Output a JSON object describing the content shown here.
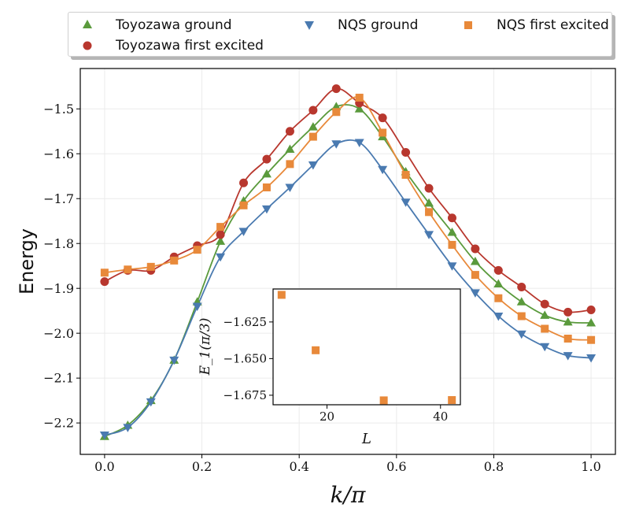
{
  "chart_data": [
    {
      "type": "line",
      "xlabel": "k/π",
      "ylabel": "Energy",
      "xlim": [
        -0.05,
        1.05
      ],
      "ylim": [
        -2.27,
        -1.41
      ],
      "xticks": [
        "0.0",
        "0.2",
        "0.4",
        "0.6",
        "0.8",
        "1.0"
      ],
      "yticks": [
        "−1.5",
        "−1.6",
        "−1.7",
        "−1.8",
        "−1.9",
        "−2.0",
        "−2.1",
        "−2.2"
      ],
      "grid": true,
      "legend": "top, outside, 3 columns",
      "series": [
        {
          "name": "Toyozawa ground",
          "marker": "triangle-up",
          "color": "#5a9a3c",
          "x": [
            0.0,
            0.0476,
            0.0952,
            0.1429,
            0.1905,
            0.2381,
            0.2857,
            0.3333,
            0.381,
            0.4286,
            0.4762,
            0.5238,
            0.5714,
            0.619,
            0.6667,
            0.7143,
            0.7619,
            0.8095,
            0.8571,
            0.9048,
            0.9524,
            1.0
          ],
          "y": [
            -2.23,
            -2.205,
            -2.15,
            -2.06,
            -1.93,
            -1.795,
            -1.705,
            -1.645,
            -1.59,
            -1.54,
            -1.495,
            -1.5,
            -1.562,
            -1.64,
            -1.71,
            -1.775,
            -1.84,
            -1.89,
            -1.93,
            -1.96,
            -1.975,
            -1.977
          ]
        },
        {
          "name": "Toyozawa first excited",
          "marker": "circle",
          "color": "#b8372e",
          "x": [
            0.0,
            0.0476,
            0.0952,
            0.1429,
            0.1905,
            0.2381,
            0.2857,
            0.3333,
            0.381,
            0.4286,
            0.4762,
            0.5238,
            0.5714,
            0.619,
            0.6667,
            0.7143,
            0.7619,
            0.8095,
            0.8571,
            0.9048,
            0.9524,
            1.0
          ],
          "y": [
            -1.885,
            -1.86,
            -1.86,
            -1.83,
            -1.805,
            -1.78,
            -1.665,
            -1.612,
            -1.55,
            -1.503,
            -1.455,
            -1.487,
            -1.52,
            -1.597,
            -1.677,
            -1.743,
            -1.812,
            -1.86,
            -1.897,
            -1.935,
            -1.953,
            -1.948
          ]
        },
        {
          "name": "NQS ground",
          "marker": "triangle-down",
          "color": "#4a7ab0",
          "x": [
            0.0,
            0.0476,
            0.0952,
            0.1429,
            0.1905,
            0.2381,
            0.2857,
            0.3333,
            0.381,
            0.4286,
            0.4762,
            0.5238,
            0.5714,
            0.619,
            0.6667,
            0.7143,
            0.7619,
            0.8095,
            0.8571,
            0.9048,
            0.9524,
            1.0
          ],
          "y": [
            -2.227,
            -2.21,
            -2.153,
            -2.06,
            -1.94,
            -1.83,
            -1.773,
            -1.723,
            -1.675,
            -1.625,
            -1.578,
            -1.575,
            -1.635,
            -1.708,
            -1.78,
            -1.85,
            -1.91,
            -1.962,
            -2.002,
            -2.03,
            -2.05,
            -2.055
          ]
        },
        {
          "name": "NQS first excited",
          "marker": "square",
          "color": "#e8893a",
          "x": [
            0.0,
            0.0476,
            0.0952,
            0.1429,
            0.1905,
            0.2381,
            0.2857,
            0.3333,
            0.381,
            0.4286,
            0.4762,
            0.5238,
            0.5714,
            0.619,
            0.6667,
            0.7143,
            0.7619,
            0.8095,
            0.8571,
            0.9048,
            0.9524,
            1.0
          ],
          "y": [
            -1.865,
            -1.858,
            -1.852,
            -1.838,
            -1.814,
            -1.763,
            -1.715,
            -1.675,
            -1.623,
            -1.562,
            -1.507,
            -1.475,
            -1.553,
            -1.647,
            -1.73,
            -1.803,
            -1.87,
            -1.922,
            -1.962,
            -1.99,
            -2.012,
            -2.015
          ]
        }
      ]
    },
    {
      "type": "scatter",
      "xlabel": "L",
      "ylabel": "E_1(π/3)",
      "xlim": [
        10.5,
        43.5
      ],
      "ylim": [
        -1.6815,
        -1.6025
      ],
      "xticks": [
        "20",
        "40"
      ],
      "yticks": [
        "−1.625",
        "−1.650",
        "−1.675"
      ],
      "series": [
        {
          "name": "NQS first excited",
          "marker": "square",
          "color": "#e8893a",
          "x": [
            12,
            18,
            30,
            42
          ],
          "y": [
            -1.6065,
            -1.6443,
            -1.6785,
            -1.6783
          ]
        }
      ]
    }
  ]
}
